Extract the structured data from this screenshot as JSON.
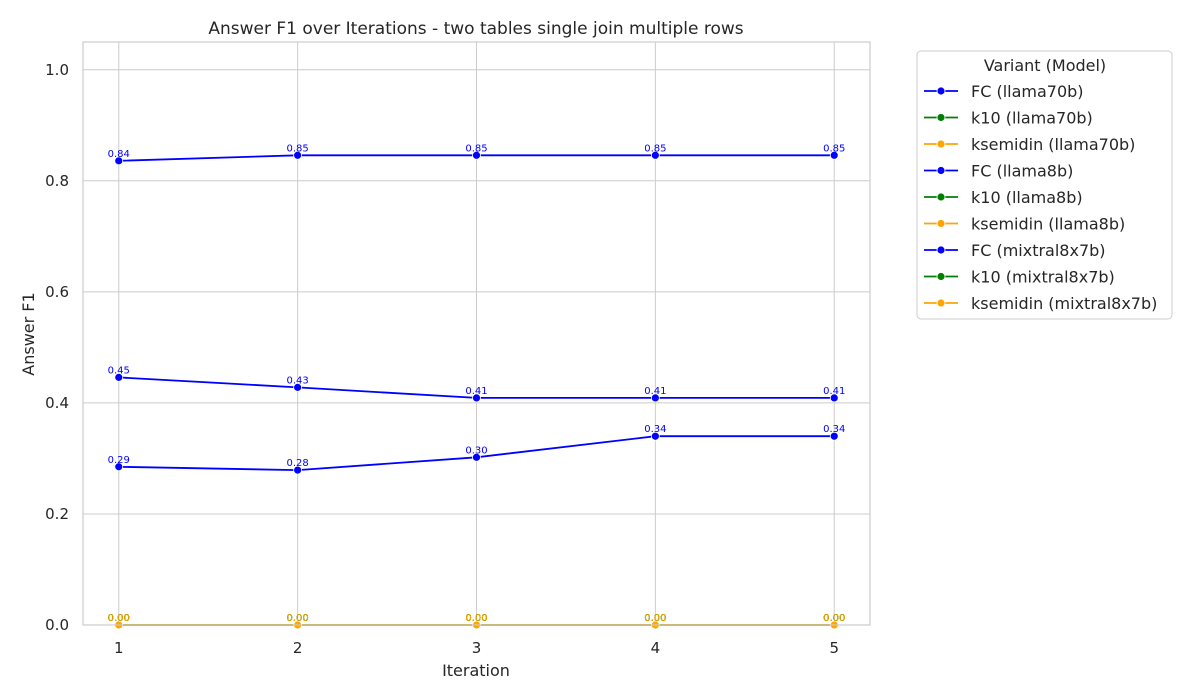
{
  "chart_data": {
    "type": "line",
    "title": "Answer F1 over Iterations - two tables single join multiple rows",
    "xlabel": "Iteration",
    "ylabel": "Answer F1",
    "x": [
      1,
      2,
      3,
      4,
      5
    ],
    "x_tick_labels": [
      "1",
      "2",
      "3",
      "4",
      "5"
    ],
    "xlim": [
      0.8,
      5.2
    ],
    "ylim": [
      0.0,
      1.05
    ],
    "y_ticks": [
      0.0,
      0.2,
      0.4,
      0.6,
      0.8,
      1.0
    ],
    "y_tick_labels": [
      "0.0",
      "0.2",
      "0.4",
      "0.6",
      "0.8",
      "1.0"
    ],
    "grid": true,
    "legend_title": "Variant (Model)",
    "legend_position": "outside-right",
    "series": [
      {
        "name": "FC (llama70b)",
        "color": "#0000ff",
        "values": [
          0.836,
          0.846,
          0.846,
          0.846,
          0.846
        ],
        "labels": [
          "0.84",
          "0.85",
          "0.85",
          "0.85",
          "0.85"
        ]
      },
      {
        "name": "k10 (llama70b)",
        "color": "#008000",
        "values": [
          0.0,
          0.0,
          0.0,
          0.0,
          0.0
        ],
        "labels": [
          "0.00",
          "0.00",
          "0.00",
          "0.00",
          "0.00"
        ]
      },
      {
        "name": "ksemidin (llama70b)",
        "color": "#ffa500",
        "values": [
          0.0,
          0.0,
          0.0,
          0.0,
          0.0
        ],
        "labels": [
          "0.00",
          "0.00",
          "0.00",
          "0.00",
          "0.00"
        ]
      },
      {
        "name": "FC (llama8b)",
        "color": "#0000ff",
        "values": [
          0.446,
          0.428,
          0.409,
          0.409,
          0.409
        ],
        "labels": [
          "0.45",
          "0.43",
          "0.41",
          "0.41",
          "0.41"
        ]
      },
      {
        "name": "k10 (llama8b)",
        "color": "#008000",
        "values": [
          0.0,
          0.0,
          0.0,
          0.0,
          0.0
        ],
        "labels": [
          "0.00",
          "0.00",
          "0.00",
          "0.00",
          "0.00"
        ]
      },
      {
        "name": "ksemidin (llama8b)",
        "color": "#ffa500",
        "values": [
          0.0,
          0.0,
          0.0,
          0.0,
          0.0
        ],
        "labels": [
          "0.00",
          "0.00",
          "0.00",
          "0.00",
          "0.00"
        ]
      },
      {
        "name": "FC (mixtral8x7b)",
        "color": "#0000ff",
        "values": [
          0.285,
          0.279,
          0.302,
          0.34,
          0.34
        ],
        "labels": [
          "0.29",
          "0.28",
          "0.30",
          "0.34",
          "0.34"
        ]
      },
      {
        "name": "k10 (mixtral8x7b)",
        "color": "#008000",
        "values": [
          0.0,
          0.0,
          0.0,
          0.0,
          0.0
        ],
        "labels": [
          "0.00",
          "0.00",
          "0.00",
          "0.00",
          "0.00"
        ]
      },
      {
        "name": "ksemidin (mixtral8x7b)",
        "color": "#ffa500",
        "values": [
          0.0,
          0.0,
          0.0,
          0.0,
          0.0
        ],
        "labels": [
          "0.00",
          "0.00",
          "0.00",
          "0.00",
          "0.00"
        ]
      }
    ]
  }
}
